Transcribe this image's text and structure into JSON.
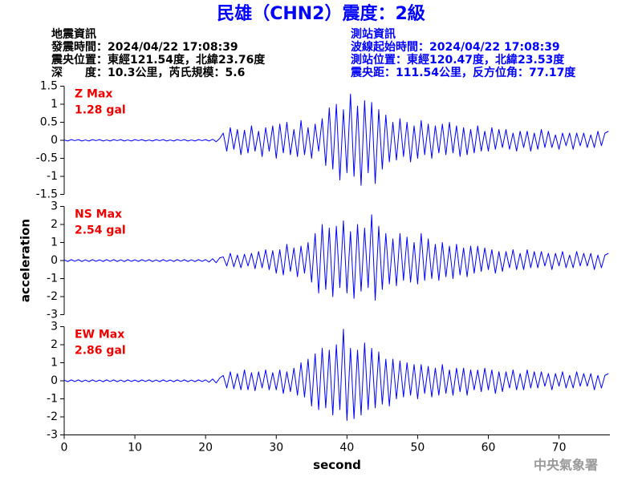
{
  "header": {
    "title": "民雄（CHN2）震度：2級",
    "event_info": [
      "地震資訊",
      "發震時間：2024/04/22 17:08:39",
      "震央位置：東經121.54度，北緯23.76度",
      "深　　度：10.3公里，芮氏規模：5.6"
    ],
    "station_info": [
      "測站資訊",
      "波線起始時間：2024/04/22 17:08:39",
      "測站位置：東經120.47度，北緯23.53度",
      "震央距：111.54公里，反方位角：77.17度"
    ]
  },
  "footer": "中央氣象署",
  "chart_data": [
    {
      "type": "line",
      "annotation": [
        "Z Max",
        "1.28 gal"
      ],
      "xlim": [
        0,
        77.2
      ],
      "ylim": [
        -1.5,
        1.5
      ],
      "yticks": [
        -1.5,
        -1,
        -0.5,
        0,
        0.5,
        1,
        1.5
      ],
      "x": [
        0,
        0.5,
        1,
        1.5,
        2,
        2.5,
        3,
        3.5,
        4,
        4.5,
        5,
        5.5,
        6,
        6.5,
        7,
        7.5,
        8,
        8.5,
        9,
        9.5,
        10,
        10.5,
        11,
        11.5,
        12,
        12.5,
        13,
        13.5,
        14,
        14.5,
        15,
        15.5,
        16,
        16.5,
        17,
        17.5,
        18,
        18.5,
        19,
        19.5,
        20,
        20.5,
        21,
        21.5,
        22,
        22.5,
        23,
        23.5,
        24,
        24.5,
        25,
        25.5,
        26,
        26.5,
        27,
        27.5,
        28,
        28.5,
        29,
        29.5,
        30,
        30.5,
        31,
        31.5,
        32,
        32.5,
        33,
        33.5,
        34,
        34.5,
        35,
        35.5,
        36,
        36.5,
        37,
        37.5,
        38,
        38.5,
        39,
        39.5,
        40,
        40.5,
        41,
        41.5,
        42,
        42.5,
        43,
        43.5,
        44,
        44.5,
        45,
        45.5,
        46,
        46.5,
        47,
        47.5,
        48,
        48.5,
        49,
        49.5,
        50,
        50.5,
        51,
        51.5,
        52,
        52.5,
        53,
        53.5,
        54,
        54.5,
        55,
        55.5,
        56,
        56.5,
        57,
        57.5,
        58,
        58.5,
        59,
        59.5,
        60,
        60.5,
        61,
        61.5,
        62,
        62.5,
        63,
        63.5,
        64,
        64.5,
        65,
        65.5,
        66,
        66.5,
        67,
        67.5,
        68,
        68.5,
        69,
        69.5,
        70,
        70.5,
        71,
        71.5,
        72,
        72.5,
        73,
        73.5,
        74,
        74.5,
        75,
        75.5,
        76,
        76.5,
        77
      ],
      "series": [
        {
          "color": "#0000ff",
          "values": [
            0.01,
            -0.02,
            0.02,
            -0.01,
            0.02,
            -0.02,
            0.01,
            -0.02,
            0.02,
            -0.01,
            0.02,
            -0.02,
            0.01,
            -0.02,
            0.02,
            -0.01,
            0.02,
            -0.02,
            0.01,
            -0.02,
            0.02,
            -0.01,
            0.02,
            -0.02,
            0.01,
            -0.02,
            0.02,
            -0.01,
            0.02,
            -0.02,
            0.01,
            -0.02,
            0.02,
            -0.01,
            0.02,
            -0.02,
            0.01,
            -0.02,
            0.02,
            -0.01,
            0.02,
            -0.02,
            0.03,
            -0.04,
            0.05,
            0.2,
            -0.3,
            0.35,
            -0.25,
            0.3,
            -0.4,
            0.28,
            -0.35,
            0.4,
            -0.3,
            0.25,
            -0.45,
            0.35,
            -0.3,
            0.4,
            -0.5,
            0.45,
            -0.35,
            0.5,
            -0.4,
            0.3,
            -0.45,
            0.55,
            -0.4,
            0.35,
            -0.5,
            0.45,
            -0.3,
            0.6,
            -0.7,
            0.9,
            -0.8,
            1.0,
            -1.1,
            0.85,
            -0.9,
            1.28,
            -1.0,
            0.95,
            -1.25,
            1.1,
            -0.9,
            1.05,
            -1.2,
            0.85,
            -0.8,
            0.7,
            -0.6,
            0.5,
            -0.55,
            0.6,
            -0.45,
            0.5,
            -0.6,
            0.4,
            -0.5,
            0.55,
            -0.4,
            0.45,
            -0.5,
            0.4,
            -0.35,
            0.45,
            -0.4,
            0.5,
            -0.35,
            0.4,
            -0.45,
            0.35,
            -0.4,
            0.3,
            -0.35,
            0.4,
            -0.3,
            0.25,
            -0.3,
            0.35,
            -0.25,
            0.3,
            -0.2,
            0.3,
            -0.25,
            0.2,
            -0.3,
            0.25,
            -0.2,
            0.25,
            -0.3,
            0.2,
            -0.25,
            0.3,
            -0.2,
            0.25,
            -0.2,
            0.15,
            -0.25,
            0.2,
            -0.15,
            0.2,
            -0.25,
            0.2,
            -0.15,
            0.2,
            -0.2,
            0.15,
            -0.2,
            0.25,
            -0.15,
            0.2,
            0.25
          ]
        }
      ]
    },
    {
      "type": "line",
      "annotation": [
        "NS Max",
        "2.54 gal"
      ],
      "ylabel": "acceleration",
      "xlim": [
        0,
        77.2
      ],
      "ylim": [
        -3,
        3
      ],
      "yticks": [
        -3,
        -2,
        -1,
        0,
        1,
        2,
        3
      ],
      "x": [
        0,
        0.5,
        1,
        1.5,
        2,
        2.5,
        3,
        3.5,
        4,
        4.5,
        5,
        5.5,
        6,
        6.5,
        7,
        7.5,
        8,
        8.5,
        9,
        9.5,
        10,
        10.5,
        11,
        11.5,
        12,
        12.5,
        13,
        13.5,
        14,
        14.5,
        15,
        15.5,
        16,
        16.5,
        17,
        17.5,
        18,
        18.5,
        19,
        19.5,
        20,
        20.5,
        21,
        21.5,
        22,
        22.5,
        23,
        23.5,
        24,
        24.5,
        25,
        25.5,
        26,
        26.5,
        27,
        27.5,
        28,
        28.5,
        29,
        29.5,
        30,
        30.5,
        31,
        31.5,
        32,
        32.5,
        33,
        33.5,
        34,
        34.5,
        35,
        35.5,
        36,
        36.5,
        37,
        37.5,
        38,
        38.5,
        39,
        39.5,
        40,
        40.5,
        41,
        41.5,
        42,
        42.5,
        43,
        43.5,
        44,
        44.5,
        45,
        45.5,
        46,
        46.5,
        47,
        47.5,
        48,
        48.5,
        49,
        49.5,
        50,
        50.5,
        51,
        51.5,
        52,
        52.5,
        53,
        53.5,
        54,
        54.5,
        55,
        55.5,
        56,
        56.5,
        57,
        57.5,
        58,
        58.5,
        59,
        59.5,
        60,
        60.5,
        61,
        61.5,
        62,
        62.5,
        63,
        63.5,
        64,
        64.5,
        65,
        65.5,
        66,
        66.5,
        67,
        67.5,
        68,
        68.5,
        69,
        69.5,
        70,
        70.5,
        71,
        71.5,
        72,
        72.5,
        73,
        73.5,
        74,
        74.5,
        75,
        75.5,
        76,
        76.5,
        77
      ],
      "series": [
        {
          "color": "#0000ff",
          "values": [
            0.04,
            -0.05,
            0.05,
            -0.04,
            0.05,
            -0.05,
            0.04,
            -0.05,
            0.05,
            -0.04,
            0.04,
            -0.05,
            0.05,
            -0.04,
            0.05,
            -0.05,
            0.04,
            -0.05,
            0.05,
            -0.04,
            0.04,
            -0.05,
            0.05,
            -0.04,
            0.05,
            -0.05,
            0.04,
            -0.05,
            0.05,
            -0.04,
            0.04,
            -0.05,
            0.05,
            -0.04,
            0.05,
            -0.05,
            0.04,
            -0.05,
            0.05,
            -0.04,
            0.05,
            -0.08,
            0.1,
            -0.12,
            0.15,
            0.2,
            -0.3,
            0.4,
            -0.35,
            0.3,
            -0.4,
            0.35,
            -0.3,
            0.4,
            -0.45,
            0.5,
            -0.4,
            0.6,
            -0.5,
            0.55,
            -0.7,
            0.6,
            -0.8,
            0.9,
            -0.6,
            0.7,
            -0.9,
            0.8,
            -0.7,
            1.0,
            -1.2,
            1.5,
            -1.8,
            2.0,
            -1.6,
            1.8,
            -2.0,
            1.9,
            -1.5,
            2.2,
            -1.8,
            1.6,
            -2.1,
            2.0,
            -1.7,
            1.8,
            -1.5,
            2.54,
            -2.2,
            1.9,
            -1.6,
            1.5,
            -1.3,
            1.2,
            -1.4,
            1.5,
            -1.1,
            1.3,
            -1.2,
            1.0,
            -1.3,
            1.5,
            -1.1,
            1.2,
            -1.0,
            0.9,
            -1.1,
            1.0,
            -0.9,
            0.8,
            -1.0,
            0.9,
            -0.8,
            0.7,
            -0.9,
            0.8,
            -0.7,
            0.8,
            -0.6,
            0.7,
            -0.5,
            0.6,
            -0.7,
            0.5,
            -0.6,
            0.5,
            -0.4,
            0.6,
            -0.5,
            0.4,
            -0.5,
            0.6,
            -0.4,
            0.5,
            -0.4,
            0.5,
            -0.3,
            0.4,
            -0.5,
            0.4,
            -0.3,
            0.5,
            -0.4,
            0.3,
            -0.4,
            0.5,
            -0.3,
            0.4,
            -0.3,
            0.4,
            -0.5,
            0.3,
            -0.4,
            0.3,
            0.4
          ]
        }
      ]
    },
    {
      "type": "line",
      "annotation": [
        "EW Max",
        "2.86 gal"
      ],
      "xlabel": "second",
      "xlim": [
        0,
        77.2
      ],
      "xticks": [
        0,
        10,
        20,
        30,
        40,
        50,
        60,
        70
      ],
      "ylim": [
        -3,
        3
      ],
      "yticks": [
        -3,
        -2,
        -1,
        0,
        1,
        2,
        3
      ],
      "x": [
        0,
        0.5,
        1,
        1.5,
        2,
        2.5,
        3,
        3.5,
        4,
        4.5,
        5,
        5.5,
        6,
        6.5,
        7,
        7.5,
        8,
        8.5,
        9,
        9.5,
        10,
        10.5,
        11,
        11.5,
        12,
        12.5,
        13,
        13.5,
        14,
        14.5,
        15,
        15.5,
        16,
        16.5,
        17,
        17.5,
        18,
        18.5,
        19,
        19.5,
        20,
        20.5,
        21,
        21.5,
        22,
        22.5,
        23,
        23.5,
        24,
        24.5,
        25,
        25.5,
        26,
        26.5,
        27,
        27.5,
        28,
        28.5,
        29,
        29.5,
        30,
        30.5,
        31,
        31.5,
        32,
        32.5,
        33,
        33.5,
        34,
        34.5,
        35,
        35.5,
        36,
        36.5,
        37,
        37.5,
        38,
        38.5,
        39,
        39.5,
        40,
        40.5,
        41,
        41.5,
        42,
        42.5,
        43,
        43.5,
        44,
        44.5,
        45,
        45.5,
        46,
        46.5,
        47,
        47.5,
        48,
        48.5,
        49,
        49.5,
        50,
        50.5,
        51,
        51.5,
        52,
        52.5,
        53,
        53.5,
        54,
        54.5,
        55,
        55.5,
        56,
        56.5,
        57,
        57.5,
        58,
        58.5,
        59,
        59.5,
        60,
        60.5,
        61,
        61.5,
        62,
        62.5,
        63,
        63.5,
        64,
        64.5,
        65,
        65.5,
        66,
        66.5,
        67,
        67.5,
        68,
        68.5,
        69,
        69.5,
        70,
        70.5,
        71,
        71.5,
        72,
        72.5,
        73,
        73.5,
        74,
        74.5,
        75,
        75.5,
        76,
        76.5,
        77
      ],
      "series": [
        {
          "color": "#0000ff",
          "values": [
            0.04,
            -0.05,
            0.05,
            -0.04,
            0.05,
            -0.05,
            0.04,
            -0.05,
            0.05,
            -0.04,
            0.04,
            -0.05,
            0.05,
            -0.04,
            0.05,
            -0.05,
            0.04,
            -0.05,
            0.05,
            -0.04,
            0.04,
            -0.05,
            0.05,
            -0.04,
            0.05,
            -0.05,
            0.04,
            -0.05,
            0.05,
            -0.04,
            0.04,
            -0.05,
            0.05,
            -0.04,
            0.05,
            -0.05,
            0.04,
            -0.05,
            0.05,
            -0.04,
            0.05,
            -0.08,
            0.1,
            -0.12,
            0.15,
            0.3,
            -0.4,
            0.5,
            -0.45,
            0.4,
            -0.5,
            0.6,
            -0.5,
            0.45,
            -0.55,
            0.5,
            -0.4,
            0.6,
            -0.5,
            0.45,
            -0.5,
            0.6,
            -0.7,
            0.5,
            -0.6,
            0.7,
            -0.8,
            1.0,
            -0.9,
            1.2,
            -1.4,
            1.5,
            -1.6,
            1.8,
            -1.5,
            1.7,
            -1.9,
            2.0,
            -1.6,
            2.86,
            -2.2,
            1.8,
            -2.1,
            1.7,
            -1.9,
            2.1,
            -1.6,
            1.8,
            -1.5,
            1.6,
            -1.3,
            1.2,
            -1.4,
            1.2,
            -1.0,
            1.1,
            -0.9,
            1.0,
            -0.8,
            0.9,
            -1.0,
            0.9,
            -0.7,
            0.8,
            -0.9,
            0.7,
            -0.8,
            0.9,
            -0.7,
            0.6,
            -0.8,
            0.7,
            -0.6,
            0.7,
            -0.8,
            0.6,
            -0.5,
            0.6,
            -0.6,
            0.7,
            -0.5,
            0.6,
            -0.7,
            0.5,
            -0.6,
            0.5,
            -0.4,
            0.6,
            -0.5,
            0.4,
            -0.5,
            0.6,
            -0.4,
            0.5,
            -0.4,
            0.5,
            -0.3,
            0.4,
            -0.5,
            0.4,
            -0.3,
            0.5,
            -0.4,
            0.3,
            -0.4,
            0.5,
            -0.3,
            0.4,
            -0.3,
            0.4,
            -0.5,
            0.3,
            -0.4,
            0.3,
            0.4
          ]
        }
      ]
    }
  ]
}
